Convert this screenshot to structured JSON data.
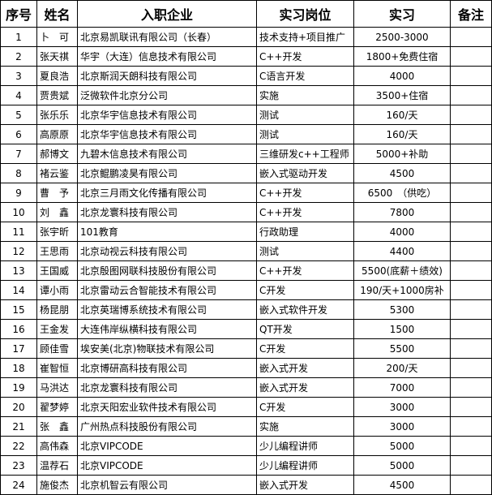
{
  "table": {
    "header": [
      "序号",
      "姓名",
      "入职企业",
      "实习岗位",
      "实习",
      "备注"
    ],
    "rows": [
      [
        "1",
        "卜　可",
        "北京易凯联讯有限公司（长春）",
        "技术支持+项目推广",
        "2500-3000"
      ],
      [
        "2",
        "张天祺",
        "华宇（大连）信息技术有限公司",
        "C++开发",
        "1800+免费住宿"
      ],
      [
        "3",
        "夏良浩",
        "北京斯润天朗科技有限公司",
        "C语言开发",
        "4000"
      ],
      [
        "4",
        "贾贵斌",
        "泛微软件北京分公司",
        "实施",
        "3500+住宿"
      ],
      [
        "5",
        "张乐乐",
        "北京华宇信息技术有限公司",
        "测试",
        "160/天"
      ],
      [
        "6",
        "高原原",
        "北京华宇信息技术有限公司",
        "测试",
        "160/天"
      ],
      [
        "7",
        "郝博文",
        "九碧木信息技术有限公司",
        "三维研发c++工程师",
        "5000+补助"
      ],
      [
        "8",
        "褚云鉴",
        "北京鲲鹏凌昊有限公司",
        "嵌入式驱动开发",
        "4500"
      ],
      [
        "9",
        "曹　予",
        "北京三月雨文化传播有限公司",
        "C++开发",
        "6500　（供吃）"
      ],
      [
        "10",
        "刘　鑫",
        "北京龙寰科技有限公司",
        "C++开发",
        "7800"
      ],
      [
        "11",
        "张宇昕",
        "101教育",
        "行政助理",
        "4000"
      ],
      [
        "12",
        "王思雨",
        "北京动视云科技有限公司",
        "测试",
        "4400"
      ],
      [
        "13",
        "王国威",
        "北京殷图网联科技股份有限公司",
        "C++开发",
        "5500(底薪＋绩效)"
      ],
      [
        "14",
        "谭小雨",
        "北京雷动云合智能技术有限公司",
        "C开发",
        "190/天+1000房补"
      ],
      [
        "15",
        "杨昆朋",
        "北京英瑞博系统技术有限公司",
        "嵌入式软件开发",
        "5300"
      ],
      [
        "16",
        "王金发",
        "大连伟岸纵横科技有限公司",
        "QT开发",
        "1500"
      ],
      [
        "17",
        "顾佳雪",
        "埃安美(北京)物联技术有限公司",
        "C开发",
        "5500"
      ],
      [
        "18",
        "崔智恒",
        "北京博研高科技有限公司",
        "嵌入式开发",
        "200/天"
      ],
      [
        "19",
        "马洪达",
        "北京龙寰科技有限公司",
        "嵌入式开发",
        "7000"
      ],
      [
        "20",
        "翟梦婷",
        "北京天阳宏业软件技术有限公司",
        "C开发",
        "3000"
      ],
      [
        "21",
        "张　鑫",
        "广州热点科技股份有限公司",
        "实施",
        "3000"
      ],
      [
        "22",
        "高伟森",
        "北京VIPCODE",
        "少儿编程讲师",
        "5000"
      ],
      [
        "23",
        "温荐石",
        "北京VIPCODE",
        "少儿编程讲师",
        "5000"
      ],
      [
        "24",
        "施俊杰",
        "北京机智云有限公司",
        "嵌入式开发",
        "4500"
      ]
    ]
  }
}
